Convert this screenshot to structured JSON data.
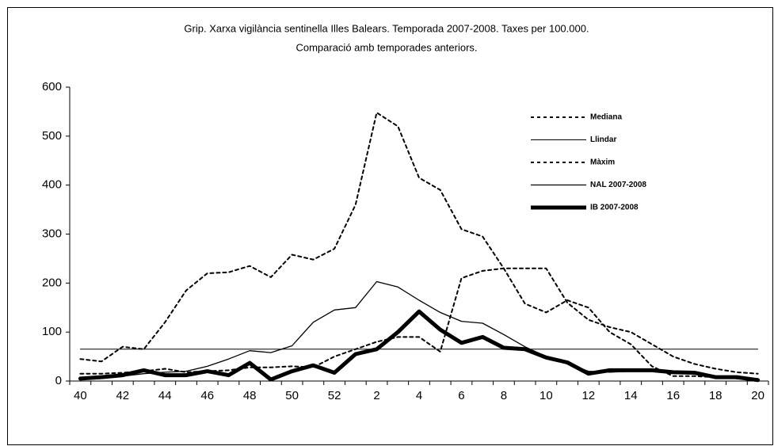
{
  "chart_data": {
    "type": "line",
    "title": "Grip. Xarxa vigilància sentinella Illes Balears. Temporada 2007-2008. Taxes per 100.000.",
    "subtitle": "Comparació amb temporades anteriors.",
    "categories": [
      "40",
      null,
      "42",
      null,
      "44",
      null,
      "46",
      null,
      "48",
      null,
      "50",
      null,
      "52",
      null,
      "2",
      null,
      "4",
      null,
      "6",
      null,
      "8",
      null,
      "10",
      null,
      "12",
      null,
      "14",
      null,
      "16",
      null,
      "18",
      null,
      "20"
    ],
    "ylim": [
      0,
      600
    ],
    "yticks": [
      0,
      100,
      200,
      300,
      400,
      500,
      600
    ],
    "legend": "upper right",
    "series": [
      {
        "name": "Mediana",
        "color": "#000000",
        "line_style": "dotted",
        "line_width": 2,
        "values": [
          15,
          15,
          17,
          20,
          25,
          18,
          20,
          22,
          28,
          28,
          30,
          28,
          50,
          65,
          80,
          90,
          90,
          60,
          210,
          225,
          230,
          230,
          230,
          160,
          125,
          110,
          100,
          75,
          50,
          35,
          25,
          18,
          15
        ]
      },
      {
        "name": "Llindar",
        "color": "#000000",
        "line_style": "solid",
        "line_width": 1,
        "values": [
          65,
          65,
          65,
          65,
          65,
          65,
          65,
          65,
          65,
          65,
          65,
          65,
          65,
          65,
          65,
          65,
          65,
          65,
          65,
          65,
          65,
          65,
          65,
          65,
          65,
          65,
          65,
          65,
          65,
          65,
          65,
          65,
          65
        ]
      },
      {
        "name": "Màxim",
        "color": "#000000",
        "line_style": "dotted",
        "line_width": 2,
        "values": [
          45,
          40,
          70,
          65,
          120,
          185,
          220,
          222,
          235,
          212,
          258,
          248,
          270,
          360,
          548,
          520,
          415,
          390,
          310,
          295,
          230,
          158,
          140,
          165,
          150,
          100,
          75,
          30,
          10,
          10,
          8,
          5,
          3
        ]
      },
      {
        "name": "NAL 2007-2008",
        "color": "#000000",
        "line_style": "solid",
        "line_width": 1.3,
        "values": [
          5,
          8,
          10,
          15,
          18,
          20,
          30,
          45,
          62,
          58,
          72,
          120,
          145,
          150,
          203,
          192,
          165,
          140,
          122,
          118,
          95,
          70,
          50,
          35,
          20,
          18,
          20,
          20,
          18,
          15,
          10,
          8,
          5
        ]
      },
      {
        "name": "IB 2007-2008",
        "color": "#000000",
        "line_style": "solid",
        "line_width": 5,
        "values": [
          5,
          8,
          12,
          22,
          12,
          12,
          20,
          12,
          37,
          3,
          20,
          32,
          17,
          55,
          65,
          100,
          142,
          105,
          78,
          90,
          68,
          65,
          48,
          38,
          15,
          22,
          22,
          22,
          18,
          17,
          8,
          8,
          2
        ]
      }
    ]
  }
}
